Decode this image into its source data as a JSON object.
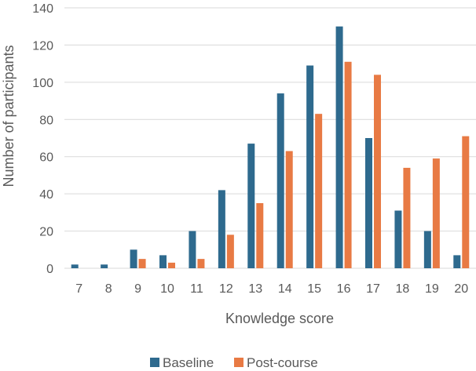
{
  "chart_data": {
    "type": "bar",
    "title": "",
    "xlabel": "Knowledge score",
    "ylabel": "Number of participants",
    "categories": [
      "7",
      "8",
      "9",
      "10",
      "11",
      "12",
      "13",
      "14",
      "15",
      "16",
      "17",
      "18",
      "19",
      "20"
    ],
    "series": [
      {
        "name": "Baseline",
        "color": "#2e6a8e",
        "values": [
          2,
          2,
          10,
          7,
          20,
          42,
          67,
          94,
          109,
          130,
          70,
          31,
          20,
          7
        ]
      },
      {
        "name": "Post-course",
        "color": "#e87a44",
        "values": [
          0,
          0,
          5,
          3,
          5,
          18,
          35,
          63,
          83,
          111,
          104,
          54,
          59,
          71
        ]
      }
    ],
    "ylim": [
      0,
      140
    ],
    "yticks": [
      "0",
      "20",
      "40",
      "60",
      "80",
      "100",
      "120",
      "140"
    ],
    "grid": true,
    "legend_position": "bottom"
  }
}
